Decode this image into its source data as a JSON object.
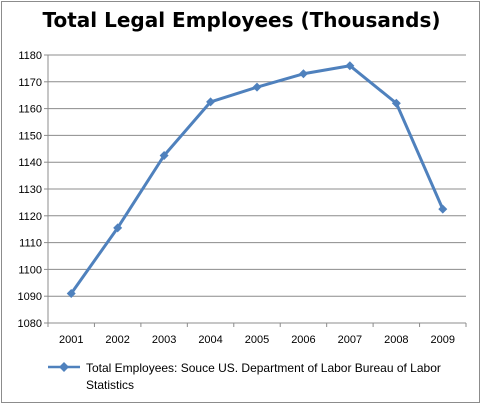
{
  "chart_data": {
    "type": "line",
    "title": "Total Legal Employees (Thousands)",
    "xlabel": "",
    "ylabel": "",
    "categories": [
      "2001",
      "2002",
      "2003",
      "2004",
      "2005",
      "2006",
      "2007",
      "2008",
      "2009"
    ],
    "series": [
      {
        "name": "Total Employees: Souce US. Department of Labor Bureau of Labor Statistics",
        "values": [
          1091,
          1115.5,
          1142.5,
          1162.5,
          1168,
          1173,
          1176,
          1162,
          1122.5
        ],
        "color": "#4f81bd",
        "marker": "diamond"
      }
    ],
    "ylim": [
      1080,
      1180
    ],
    "yticks": [
      1080,
      1090,
      1100,
      1110,
      1120,
      1130,
      1140,
      1150,
      1160,
      1170,
      1180
    ],
    "grid": true,
    "legend_position": "bottom"
  }
}
